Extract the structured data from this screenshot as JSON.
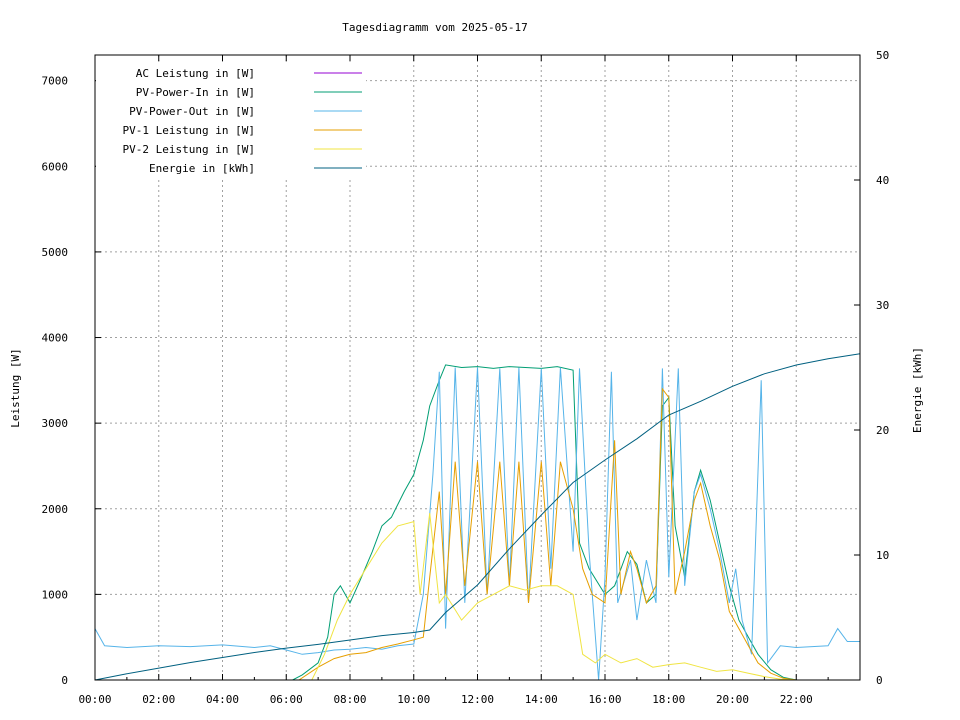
{
  "chart_data": {
    "type": "line",
    "title": "Tagesdiagramm vom 2025-05-17",
    "ylabel": "Leistung [W]",
    "y2label": "Energie [kWh]",
    "xlim": [
      0,
      24
    ],
    "ylim": [
      0,
      7300
    ],
    "y2lim": [
      0,
      50
    ],
    "x_ticks": [
      "00:00",
      "02:00",
      "04:00",
      "06:00",
      "08:00",
      "10:00",
      "12:00",
      "14:00",
      "16:00",
      "18:00",
      "20:00",
      "22:00"
    ],
    "y_ticks": [
      0,
      1000,
      2000,
      3000,
      4000,
      5000,
      6000,
      7000
    ],
    "y2_ticks": [
      0,
      10,
      20,
      30,
      40,
      50
    ],
    "grid": true,
    "legend_position": "top-left",
    "series": [
      {
        "name": "AC Leistung in [W]",
        "axis": "left",
        "color": "#9400d3",
        "points": []
      },
      {
        "name": "PV-Power-In in [W]",
        "axis": "left",
        "color": "#009e73",
        "points": [
          [
            0,
            0
          ],
          [
            6.2,
            0
          ],
          [
            6.5,
            60
          ],
          [
            7.0,
            200
          ],
          [
            7.3,
            500
          ],
          [
            7.5,
            1000
          ],
          [
            7.7,
            1100
          ],
          [
            8.0,
            900
          ],
          [
            8.3,
            1150
          ],
          [
            8.7,
            1500
          ],
          [
            9.0,
            1800
          ],
          [
            9.3,
            1900
          ],
          [
            9.7,
            2200
          ],
          [
            10.0,
            2400
          ],
          [
            10.3,
            2800
          ],
          [
            10.5,
            3200
          ],
          [
            10.8,
            3500
          ],
          [
            11.0,
            3680
          ],
          [
            11.5,
            3650
          ],
          [
            12.0,
            3660
          ],
          [
            12.5,
            3640
          ],
          [
            13.0,
            3660
          ],
          [
            13.5,
            3650
          ],
          [
            14.0,
            3640
          ],
          [
            14.5,
            3660
          ],
          [
            15.0,
            3620
          ],
          [
            15.2,
            1600
          ],
          [
            15.5,
            1300
          ],
          [
            16.0,
            1000
          ],
          [
            16.3,
            1100
          ],
          [
            16.7,
            1500
          ],
          [
            17.0,
            1350
          ],
          [
            17.3,
            900
          ],
          [
            17.6,
            1000
          ],
          [
            17.8,
            3200
          ],
          [
            18.0,
            3300
          ],
          [
            18.2,
            1800
          ],
          [
            18.5,
            1200
          ],
          [
            18.8,
            2200
          ],
          [
            19.0,
            2450
          ],
          [
            19.3,
            2100
          ],
          [
            19.6,
            1600
          ],
          [
            19.9,
            1100
          ],
          [
            20.2,
            700
          ],
          [
            20.5,
            500
          ],
          [
            20.8,
            300
          ],
          [
            21.2,
            120
          ],
          [
            21.6,
            30
          ],
          [
            22.0,
            0
          ],
          [
            24,
            0
          ]
        ]
      },
      {
        "name": "PV-Power-Out in [W]",
        "axis": "left",
        "color": "#56b4e9",
        "points": [
          [
            0,
            600
          ],
          [
            0.3,
            400
          ],
          [
            1.0,
            380
          ],
          [
            2.0,
            400
          ],
          [
            3.0,
            390
          ],
          [
            4.0,
            410
          ],
          [
            5.0,
            380
          ],
          [
            5.5,
            400
          ],
          [
            6.0,
            350
          ],
          [
            6.5,
            300
          ],
          [
            7.0,
            320
          ],
          [
            7.5,
            350
          ],
          [
            8.0,
            360
          ],
          [
            8.5,
            380
          ],
          [
            9.0,
            360
          ],
          [
            9.5,
            400
          ],
          [
            10.0,
            420
          ],
          [
            10.3,
            1000
          ],
          [
            10.6,
            2400
          ],
          [
            10.8,
            3600
          ],
          [
            11.0,
            600
          ],
          [
            11.3,
            3650
          ],
          [
            11.6,
            900
          ],
          [
            12.0,
            3650
          ],
          [
            12.3,
            1000
          ],
          [
            12.7,
            3640
          ],
          [
            13.0,
            1100
          ],
          [
            13.3,
            3650
          ],
          [
            13.6,
            900
          ],
          [
            14.0,
            3640
          ],
          [
            14.3,
            1300
          ],
          [
            14.6,
            3650
          ],
          [
            15.0,
            1500
          ],
          [
            15.2,
            3640
          ],
          [
            15.5,
            1500
          ],
          [
            15.8,
            0
          ],
          [
            16.0,
            1200
          ],
          [
            16.2,
            3600
          ],
          [
            16.4,
            900
          ],
          [
            16.8,
            1400
          ],
          [
            17.0,
            700
          ],
          [
            17.3,
            1400
          ],
          [
            17.6,
            900
          ],
          [
            17.8,
            3640
          ],
          [
            18.0,
            1200
          ],
          [
            18.3,
            3640
          ],
          [
            18.5,
            1100
          ],
          [
            18.8,
            2200
          ],
          [
            19.0,
            2400
          ],
          [
            19.3,
            2000
          ],
          [
            19.6,
            1500
          ],
          [
            19.9,
            900
          ],
          [
            20.1,
            1300
          ],
          [
            20.3,
            700
          ],
          [
            20.6,
            300
          ],
          [
            20.9,
            3500
          ],
          [
            21.1,
            200
          ],
          [
            21.5,
            400
          ],
          [
            22.0,
            380
          ],
          [
            23.0,
            400
          ],
          [
            23.3,
            600
          ],
          [
            23.6,
            450
          ],
          [
            24,
            450
          ]
        ]
      },
      {
        "name": "PV-1 Leistung in [W]",
        "axis": "left",
        "color": "#e69f00",
        "points": [
          [
            0,
            0
          ],
          [
            6.4,
            0
          ],
          [
            7.0,
            150
          ],
          [
            7.5,
            250
          ],
          [
            8.0,
            300
          ],
          [
            8.5,
            320
          ],
          [
            9.0,
            380
          ],
          [
            9.5,
            420
          ],
          [
            10.0,
            470
          ],
          [
            10.3,
            500
          ],
          [
            10.5,
            1200
          ],
          [
            10.8,
            2200
          ],
          [
            11.0,
            1000
          ],
          [
            11.3,
            2550
          ],
          [
            11.6,
            1100
          ],
          [
            12.0,
            2550
          ],
          [
            12.3,
            1000
          ],
          [
            12.7,
            2550
          ],
          [
            13.0,
            1100
          ],
          [
            13.3,
            2550
          ],
          [
            13.6,
            900
          ],
          [
            14.0,
            2550
          ],
          [
            14.3,
            1100
          ],
          [
            14.6,
            2550
          ],
          [
            15.0,
            2000
          ],
          [
            15.3,
            1300
          ],
          [
            15.6,
            1000
          ],
          [
            16.0,
            900
          ],
          [
            16.3,
            2800
          ],
          [
            16.5,
            1000
          ],
          [
            16.8,
            1500
          ],
          [
            17.0,
            1300
          ],
          [
            17.3,
            900
          ],
          [
            17.6,
            1100
          ],
          [
            17.8,
            3400
          ],
          [
            18.0,
            3300
          ],
          [
            18.2,
            1000
          ],
          [
            18.5,
            1500
          ],
          [
            18.8,
            2100
          ],
          [
            19.0,
            2300
          ],
          [
            19.3,
            1800
          ],
          [
            19.6,
            1400
          ],
          [
            19.9,
            800
          ],
          [
            20.2,
            600
          ],
          [
            20.5,
            400
          ],
          [
            20.8,
            200
          ],
          [
            21.2,
            80
          ],
          [
            21.6,
            20
          ],
          [
            22.0,
            0
          ],
          [
            24,
            0
          ]
        ]
      },
      {
        "name": "PV-2 Leistung in [W]",
        "axis": "left",
        "color": "#f0e442",
        "points": [
          [
            0,
            0
          ],
          [
            6.8,
            0
          ],
          [
            7.2,
            300
          ],
          [
            7.6,
            700
          ],
          [
            8.0,
            1000
          ],
          [
            8.5,
            1300
          ],
          [
            9.0,
            1600
          ],
          [
            9.5,
            1800
          ],
          [
            10.0,
            1850
          ],
          [
            10.2,
            1000
          ],
          [
            10.5,
            1950
          ],
          [
            10.8,
            900
          ],
          [
            11.0,
            1000
          ],
          [
            11.5,
            700
          ],
          [
            12.0,
            900
          ],
          [
            12.5,
            1000
          ],
          [
            13.0,
            1100
          ],
          [
            13.5,
            1050
          ],
          [
            14.0,
            1100
          ],
          [
            14.5,
            1100
          ],
          [
            15.0,
            1000
          ],
          [
            15.3,
            300
          ],
          [
            15.7,
            200
          ],
          [
            16.0,
            300
          ],
          [
            16.5,
            200
          ],
          [
            17.0,
            250
          ],
          [
            17.5,
            150
          ],
          [
            18.0,
            180
          ],
          [
            18.5,
            200
          ],
          [
            19.0,
            150
          ],
          [
            19.5,
            100
          ],
          [
            20.0,
            120
          ],
          [
            20.5,
            80
          ],
          [
            21.0,
            40
          ],
          [
            21.5,
            10
          ],
          [
            22.0,
            0
          ],
          [
            24,
            0
          ]
        ]
      },
      {
        "name": "Energie in [kWh]",
        "axis": "right",
        "color": "#006080",
        "points": [
          [
            0,
            0
          ],
          [
            1,
            0.5
          ],
          [
            2,
            0.95
          ],
          [
            3,
            1.4
          ],
          [
            4,
            1.8
          ],
          [
            5,
            2.2
          ],
          [
            6,
            2.55
          ],
          [
            7,
            2.85
          ],
          [
            8,
            3.2
          ],
          [
            9,
            3.55
          ],
          [
            10,
            3.8
          ],
          [
            10.5,
            4.0
          ],
          [
            11,
            5.4
          ],
          [
            12,
            7.6
          ],
          [
            13,
            10.5
          ],
          [
            14,
            13.2
          ],
          [
            15,
            15.8
          ],
          [
            16,
            17.6
          ],
          [
            17,
            19.3
          ],
          [
            18,
            21.2
          ],
          [
            19,
            22.3
          ],
          [
            20,
            23.5
          ],
          [
            21,
            24.5
          ],
          [
            22,
            25.2
          ],
          [
            23,
            25.7
          ],
          [
            24,
            26.1
          ]
        ]
      }
    ]
  }
}
